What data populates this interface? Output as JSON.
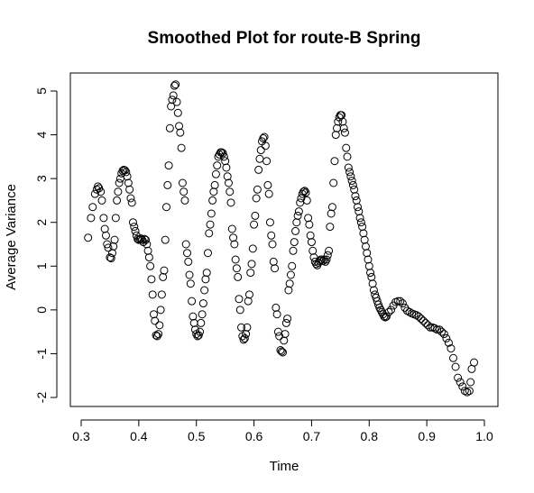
{
  "chart_data": {
    "type": "scatter",
    "title": "Smoothed Plot for route-B Spring",
    "xlabel": "Time",
    "ylabel": "Average Variance",
    "xlim": [
      0.3,
      1.0
    ],
    "ylim": [
      -2.1,
      5.3
    ],
    "x_ticks": [
      "0.3",
      "0.4",
      "0.5",
      "0.6",
      "0.7",
      "0.8",
      "0.9",
      "1.0"
    ],
    "y_ticks": [
      "-2",
      "-1",
      "0",
      "1",
      "2",
      "3",
      "4",
      "5"
    ],
    "grid": false,
    "marker": "open-circle",
    "series": [
      {
        "points": [
          [
            0.312,
            1.65
          ],
          [
            0.317,
            2.1
          ],
          [
            0.32,
            2.35
          ],
          [
            0.324,
            2.65
          ],
          [
            0.327,
            2.75
          ],
          [
            0.329,
            2.82
          ],
          [
            0.331,
            2.78
          ],
          [
            0.334,
            2.7
          ],
          [
            0.336,
            2.5
          ],
          [
            0.339,
            2.1
          ],
          [
            0.341,
            1.85
          ],
          [
            0.343,
            1.7
          ],
          [
            0.345,
            1.5
          ],
          [
            0.347,
            1.42
          ],
          [
            0.35,
            1.2
          ],
          [
            0.352,
            1.18
          ],
          [
            0.354,
            1.3
          ],
          [
            0.356,
            1.45
          ],
          [
            0.358,
            1.6
          ],
          [
            0.36,
            2.1
          ],
          [
            0.362,
            2.5
          ],
          [
            0.364,
            2.7
          ],
          [
            0.366,
            2.9
          ],
          [
            0.368,
            3.0
          ],
          [
            0.37,
            3.12
          ],
          [
            0.372,
            3.18
          ],
          [
            0.374,
            3.2
          ],
          [
            0.376,
            3.19
          ],
          [
            0.378,
            3.15
          ],
          [
            0.38,
            3.05
          ],
          [
            0.382,
            2.9
          ],
          [
            0.384,
            2.75
          ],
          [
            0.386,
            2.55
          ],
          [
            0.388,
            2.45
          ],
          [
            0.39,
            2.0
          ],
          [
            0.392,
            1.9
          ],
          [
            0.394,
            1.8
          ],
          [
            0.396,
            1.7
          ],
          [
            0.398,
            1.62
          ],
          [
            0.4,
            1.6
          ],
          [
            0.402,
            1.62
          ],
          [
            0.404,
            1.63
          ],
          [
            0.406,
            1.6
          ],
          [
            0.408,
            1.55
          ],
          [
            0.41,
            1.62
          ],
          [
            0.412,
            1.6
          ],
          [
            0.414,
            1.5
          ],
          [
            0.416,
            1.35
          ],
          [
            0.418,
            1.2
          ],
          [
            0.42,
            1.0
          ],
          [
            0.422,
            0.7
          ],
          [
            0.424,
            0.35
          ],
          [
            0.426,
            -0.1
          ],
          [
            0.428,
            -0.25
          ],
          [
            0.43,
            -0.58
          ],
          [
            0.432,
            -0.6
          ],
          [
            0.434,
            -0.55
          ],
          [
            0.436,
            -0.35
          ],
          [
            0.438,
            0.0
          ],
          [
            0.44,
            0.35
          ],
          [
            0.442,
            0.75
          ],
          [
            0.444,
            0.9
          ],
          [
            0.446,
            1.6
          ],
          [
            0.448,
            2.35
          ],
          [
            0.45,
            2.85
          ],
          [
            0.452,
            3.3
          ],
          [
            0.454,
            4.15
          ],
          [
            0.456,
            4.65
          ],
          [
            0.458,
            4.8
          ],
          [
            0.46,
            4.9
          ],
          [
            0.462,
            5.12
          ],
          [
            0.464,
            5.15
          ],
          [
            0.466,
            4.75
          ],
          [
            0.468,
            4.5
          ],
          [
            0.47,
            4.2
          ],
          [
            0.472,
            4.05
          ],
          [
            0.474,
            3.7
          ],
          [
            0.476,
            2.9
          ],
          [
            0.478,
            2.7
          ],
          [
            0.48,
            2.5
          ],
          [
            0.482,
            1.5
          ],
          [
            0.484,
            1.3
          ],
          [
            0.486,
            1.1
          ],
          [
            0.488,
            0.8
          ],
          [
            0.49,
            0.6
          ],
          [
            0.492,
            0.2
          ],
          [
            0.494,
            -0.15
          ],
          [
            0.496,
            -0.3
          ],
          [
            0.498,
            -0.45
          ],
          [
            0.5,
            -0.55
          ],
          [
            0.502,
            -0.6
          ],
          [
            0.504,
            -0.58
          ],
          [
            0.506,
            -0.5
          ],
          [
            0.508,
            -0.3
          ],
          [
            0.51,
            -0.1
          ],
          [
            0.512,
            0.15
          ],
          [
            0.514,
            0.45
          ],
          [
            0.516,
            0.7
          ],
          [
            0.518,
            0.85
          ],
          [
            0.52,
            1.3
          ],
          [
            0.522,
            1.75
          ],
          [
            0.524,
            1.95
          ],
          [
            0.526,
            2.2
          ],
          [
            0.528,
            2.5
          ],
          [
            0.53,
            2.7
          ],
          [
            0.532,
            2.85
          ],
          [
            0.534,
            3.1
          ],
          [
            0.536,
            3.3
          ],
          [
            0.538,
            3.5
          ],
          [
            0.54,
            3.55
          ],
          [
            0.542,
            3.6
          ],
          [
            0.544,
            3.6
          ],
          [
            0.546,
            3.58
          ],
          [
            0.548,
            3.5
          ],
          [
            0.55,
            3.4
          ],
          [
            0.552,
            3.25
          ],
          [
            0.554,
            3.05
          ],
          [
            0.556,
            2.9
          ],
          [
            0.558,
            2.7
          ],
          [
            0.56,
            2.45
          ],
          [
            0.562,
            1.85
          ],
          [
            0.564,
            1.65
          ],
          [
            0.566,
            1.5
          ],
          [
            0.568,
            1.15
          ],
          [
            0.57,
            0.95
          ],
          [
            0.572,
            0.75
          ],
          [
            0.574,
            0.25
          ],
          [
            0.576,
            0.0
          ],
          [
            0.578,
            -0.4
          ],
          [
            0.58,
            -0.6
          ],
          [
            0.582,
            -0.68
          ],
          [
            0.584,
            -0.65
          ],
          [
            0.586,
            -0.55
          ],
          [
            0.588,
            -0.4
          ],
          [
            0.59,
            0.2
          ],
          [
            0.592,
            0.35
          ],
          [
            0.594,
            0.85
          ],
          [
            0.596,
            1.05
          ],
          [
            0.598,
            1.4
          ],
          [
            0.6,
            1.95
          ],
          [
            0.602,
            2.15
          ],
          [
            0.604,
            2.55
          ],
          [
            0.606,
            2.75
          ],
          [
            0.608,
            3.2
          ],
          [
            0.61,
            3.45
          ],
          [
            0.612,
            3.65
          ],
          [
            0.614,
            3.85
          ],
          [
            0.616,
            3.92
          ],
          [
            0.618,
            3.95
          ],
          [
            0.62,
            3.75
          ],
          [
            0.622,
            3.4
          ],
          [
            0.624,
            2.85
          ],
          [
            0.626,
            2.65
          ],
          [
            0.628,
            2.0
          ],
          [
            0.63,
            1.7
          ],
          [
            0.632,
            1.5
          ],
          [
            0.634,
            1.1
          ],
          [
            0.636,
            0.95
          ],
          [
            0.638,
            0.05
          ],
          [
            0.64,
            -0.1
          ],
          [
            0.642,
            -0.5
          ],
          [
            0.644,
            -0.6
          ],
          [
            0.646,
            -0.92
          ],
          [
            0.648,
            -0.95
          ],
          [
            0.65,
            -0.97
          ],
          [
            0.652,
            -0.7
          ],
          [
            0.654,
            -0.55
          ],
          [
            0.656,
            -0.3
          ],
          [
            0.658,
            -0.2
          ],
          [
            0.66,
            0.45
          ],
          [
            0.662,
            0.6
          ],
          [
            0.664,
            0.8
          ],
          [
            0.666,
            1.0
          ],
          [
            0.668,
            1.35
          ],
          [
            0.67,
            1.55
          ],
          [
            0.672,
            1.8
          ],
          [
            0.674,
            2.0
          ],
          [
            0.676,
            2.15
          ],
          [
            0.678,
            2.25
          ],
          [
            0.68,
            2.45
          ],
          [
            0.682,
            2.55
          ],
          [
            0.684,
            2.65
          ],
          [
            0.686,
            2.7
          ],
          [
            0.688,
            2.72
          ],
          [
            0.69,
            2.68
          ],
          [
            0.692,
            2.5
          ],
          [
            0.694,
            2.1
          ],
          [
            0.696,
            1.95
          ],
          [
            0.698,
            1.7
          ],
          [
            0.7,
            1.55
          ],
          [
            0.702,
            1.35
          ],
          [
            0.704,
            1.2
          ],
          [
            0.706,
            1.1
          ],
          [
            0.708,
            1.05
          ],
          [
            0.71,
            1.02
          ],
          [
            0.712,
            1.08
          ],
          [
            0.714,
            1.12
          ],
          [
            0.716,
            1.15
          ],
          [
            0.718,
            1.15
          ],
          [
            0.72,
            1.12
          ],
          [
            0.722,
            1.15
          ],
          [
            0.724,
            1.1
          ],
          [
            0.726,
            1.15
          ],
          [
            0.728,
            1.25
          ],
          [
            0.73,
            1.35
          ],
          [
            0.732,
            1.9
          ],
          [
            0.734,
            2.2
          ],
          [
            0.736,
            2.35
          ],
          [
            0.738,
            2.9
          ],
          [
            0.74,
            3.4
          ],
          [
            0.742,
            4.0
          ],
          [
            0.744,
            4.15
          ],
          [
            0.746,
            4.3
          ],
          [
            0.748,
            4.4
          ],
          [
            0.75,
            4.45
          ],
          [
            0.752,
            4.45
          ],
          [
            0.754,
            4.3
          ],
          [
            0.756,
            4.15
          ],
          [
            0.758,
            4.05
          ],
          [
            0.76,
            3.7
          ],
          [
            0.762,
            3.5
          ],
          [
            0.764,
            3.25
          ],
          [
            0.766,
            3.15
          ],
          [
            0.768,
            3.05
          ],
          [
            0.77,
            2.95
          ],
          [
            0.772,
            2.85
          ],
          [
            0.774,
            2.75
          ],
          [
            0.776,
            2.6
          ],
          [
            0.778,
            2.5
          ],
          [
            0.78,
            2.35
          ],
          [
            0.782,
            2.25
          ],
          [
            0.784,
            2.1
          ],
          [
            0.786,
            2.0
          ],
          [
            0.788,
            1.9
          ],
          [
            0.79,
            1.75
          ],
          [
            0.792,
            1.6
          ],
          [
            0.794,
            1.45
          ],
          [
            0.796,
            1.3
          ],
          [
            0.798,
            1.15
          ],
          [
            0.8,
            1.0
          ],
          [
            0.802,
            0.85
          ],
          [
            0.804,
            0.75
          ],
          [
            0.806,
            0.6
          ],
          [
            0.808,
            0.45
          ],
          [
            0.81,
            0.35
          ],
          [
            0.812,
            0.28
          ],
          [
            0.814,
            0.2
          ],
          [
            0.816,
            0.12
          ],
          [
            0.818,
            0.05
          ],
          [
            0.82,
            0.0
          ],
          [
            0.822,
            -0.05
          ],
          [
            0.824,
            -0.1
          ],
          [
            0.826,
            -0.15
          ],
          [
            0.828,
            -0.17
          ],
          [
            0.83,
            -0.15
          ],
          [
            0.834,
            -0.05
          ],
          [
            0.838,
            0.0
          ],
          [
            0.842,
            0.1
          ],
          [
            0.846,
            0.18
          ],
          [
            0.85,
            0.2
          ],
          [
            0.854,
            0.2
          ],
          [
            0.858,
            0.15
          ],
          [
            0.862,
            0.05
          ],
          [
            0.866,
            -0.02
          ],
          [
            0.87,
            -0.05
          ],
          [
            0.874,
            -0.08
          ],
          [
            0.878,
            -0.1
          ],
          [
            0.882,
            -0.12
          ],
          [
            0.886,
            -0.15
          ],
          [
            0.89,
            -0.2
          ],
          [
            0.894,
            -0.25
          ],
          [
            0.898,
            -0.3
          ],
          [
            0.902,
            -0.35
          ],
          [
            0.906,
            -0.4
          ],
          [
            0.91,
            -0.4
          ],
          [
            0.914,
            -0.42
          ],
          [
            0.918,
            -0.45
          ],
          [
            0.922,
            -0.45
          ],
          [
            0.926,
            -0.5
          ],
          [
            0.93,
            -0.55
          ],
          [
            0.934,
            -0.65
          ],
          [
            0.938,
            -0.75
          ],
          [
            0.942,
            -0.88
          ],
          [
            0.946,
            -1.1
          ],
          [
            0.95,
            -1.3
          ],
          [
            0.954,
            -1.55
          ],
          [
            0.958,
            -1.65
          ],
          [
            0.962,
            -1.75
          ],
          [
            0.966,
            -1.85
          ],
          [
            0.97,
            -1.88
          ],
          [
            0.974,
            -1.85
          ],
          [
            0.976,
            -1.65
          ],
          [
            0.978,
            -1.35
          ],
          [
            0.982,
            -1.2
          ]
        ]
      }
    ]
  }
}
